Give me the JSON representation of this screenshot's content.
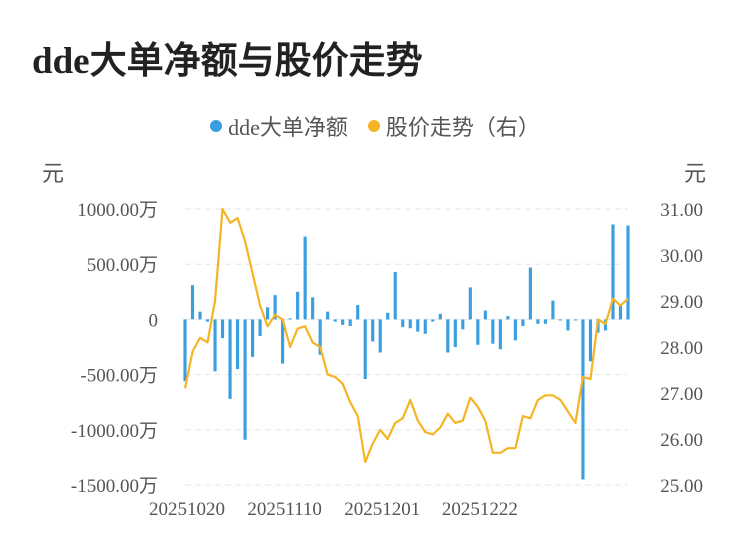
{
  "title": "dde大单净额与股价走势",
  "legend": [
    {
      "label": "dde大单净额",
      "color": "#3a9fe0"
    },
    {
      "label": "股价走势（右）",
      "color": "#f5b423"
    }
  ],
  "left_unit": "元",
  "right_unit": "元",
  "chart_data": {
    "type": "bar+line",
    "title": "dde大单净额与股价走势",
    "left_axis": {
      "unit": "元",
      "ylim": [
        -1500,
        1000
      ],
      "ticks": [
        1000,
        500,
        0,
        -500,
        -1000,
        -1500
      ],
      "tick_labels": [
        "1000.00万",
        "500.00万",
        "0",
        "-500.00万",
        "-1000.00万",
        "-1500.00万"
      ]
    },
    "right_axis": {
      "unit": "元",
      "ylim": [
        25,
        31
      ],
      "ticks": [
        31,
        30,
        29,
        28,
        27,
        26,
        25
      ],
      "tick_labels": [
        "31.00",
        "30.00",
        "29.00",
        "28.00",
        "27.00",
        "26.00",
        "25.00"
      ]
    },
    "x_tick_labels": [
      "20251020",
      "20251110",
      "20251201",
      "20251222"
    ],
    "x_tick_index": [
      0,
      13,
      26,
      39
    ],
    "grid": true,
    "series": [
      {
        "name": "dde大单净额",
        "type": "bar",
        "color": "#3a9fe0",
        "values": [
          -560,
          310,
          70,
          -20,
          -470,
          -170,
          -720,
          -450,
          -1090,
          -340,
          -150,
          110,
          220,
          -400,
          10,
          250,
          750,
          200,
          -320,
          70,
          -20,
          -50,
          -60,
          130,
          -540,
          -200,
          -300,
          60,
          430,
          -70,
          -80,
          -110,
          -130,
          -20,
          50,
          -300,
          -250,
          -90,
          290,
          -230,
          80,
          -220,
          -270,
          30,
          -190,
          -60,
          470,
          -40,
          -40,
          170,
          -10,
          -100,
          -10,
          -1450,
          -380,
          -120,
          -100,
          860,
          130,
          850
        ]
      },
      {
        "name": "股价走势（右）",
        "type": "line",
        "color": "#f5b423",
        "values": [
          27.1,
          27.9,
          28.2,
          28.1,
          29.0,
          31.0,
          30.7,
          30.8,
          30.3,
          29.6,
          28.9,
          28.45,
          28.7,
          28.6,
          28.0,
          28.4,
          28.45,
          28.1,
          28.0,
          27.4,
          27.35,
          27.2,
          26.8,
          26.5,
          25.5,
          25.9,
          26.2,
          26.0,
          26.35,
          26.45,
          26.85,
          26.4,
          26.15,
          26.1,
          26.25,
          26.55,
          26.35,
          26.4,
          26.9,
          26.7,
          26.4,
          25.7,
          25.7,
          25.8,
          25.8,
          26.5,
          26.45,
          26.85,
          26.95,
          26.95,
          26.85,
          26.6,
          26.35,
          27.35,
          27.3,
          28.6,
          28.5,
          29.05,
          28.9,
          29.05
        ]
      }
    ]
  }
}
